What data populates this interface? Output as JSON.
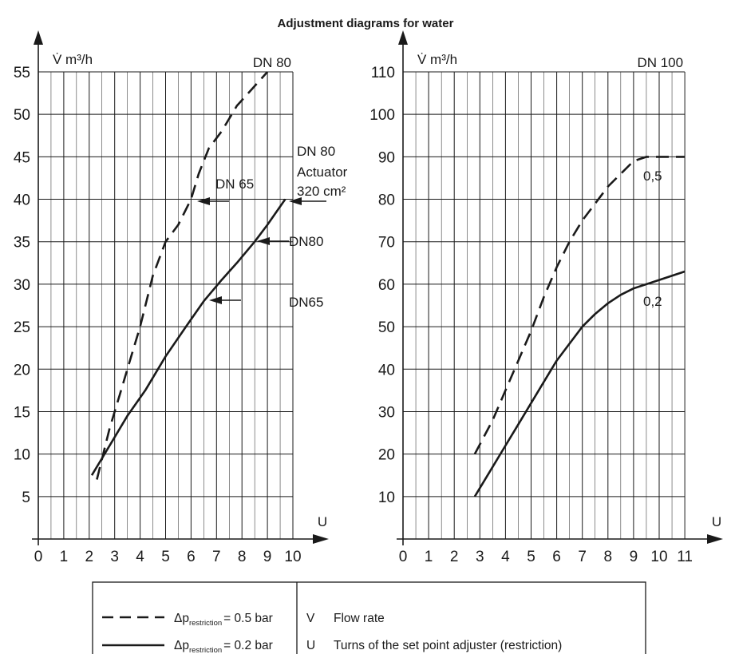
{
  "title": "Adjustment diagrams for water",
  "chart_data": [
    {
      "type": "line",
      "y_axis_label": "V̇ m³/h",
      "x_axis_label": "U",
      "panel_label": "DN 80",
      "xlim": [
        0,
        10
      ],
      "ylim": [
        0,
        55
      ],
      "x_ticks": [
        0,
        1,
        2,
        3,
        4,
        5,
        6,
        7,
        8,
        9,
        10
      ],
      "y_ticks": [
        5,
        10,
        15,
        20,
        25,
        30,
        35,
        40,
        45,
        50,
        55
      ],
      "grid": true,
      "series": [
        {
          "style": "dashed",
          "points": [
            [
              2.3,
              7
            ],
            [
              2.8,
              13
            ],
            [
              3.2,
              17
            ],
            [
              3.6,
              21
            ],
            [
              4.0,
              25
            ],
            [
              4.5,
              31
            ],
            [
              5.0,
              35
            ],
            [
              5.5,
              37
            ],
            [
              6.0,
              40
            ],
            [
              6.3,
              43
            ],
            [
              6.7,
              46
            ],
            [
              7.2,
              48
            ],
            [
              7.8,
              51
            ],
            [
              8.4,
              53
            ],
            [
              9.0,
              55
            ]
          ]
        },
        {
          "style": "solid",
          "points": [
            [
              2.1,
              7.5
            ],
            [
              2.5,
              9.5
            ],
            [
              3.0,
              12
            ],
            [
              3.5,
              14.5
            ],
            [
              4.2,
              17.5
            ],
            [
              5.0,
              21.5
            ],
            [
              5.8,
              25
            ],
            [
              6.5,
              28
            ],
            [
              7.2,
              30.5
            ],
            [
              7.8,
              32.5
            ],
            [
              8.5,
              35
            ],
            [
              9.0,
              37
            ],
            [
              9.7,
              40
            ]
          ]
        }
      ],
      "annotations": [
        {
          "text": "DN 65",
          "points_to": [
            6.0,
            40
          ]
        },
        {
          "text": "DN80",
          "points_to": [
            8.5,
            35
          ]
        },
        {
          "text": "DN65",
          "points_to": [
            6.5,
            28
          ]
        },
        {
          "text_lines": [
            "DN 80",
            "Actuator",
            "320 cm²"
          ],
          "points_to": [
            9.7,
            40
          ]
        }
      ]
    },
    {
      "type": "line",
      "y_axis_label": "V̇ m³/h",
      "x_axis_label": "U",
      "panel_label": "DN 100",
      "xlim": [
        0,
        11
      ],
      "ylim": [
        0,
        110
      ],
      "x_ticks": [
        0,
        1,
        2,
        3,
        4,
        5,
        6,
        7,
        8,
        9,
        10,
        11
      ],
      "y_ticks": [
        10,
        20,
        30,
        40,
        50,
        60,
        70,
        80,
        90,
        100,
        110
      ],
      "grid": true,
      "series": [
        {
          "style": "dashed",
          "points": [
            [
              2.8,
              20
            ],
            [
              3.5,
              28
            ],
            [
              4.0,
              35
            ],
            [
              4.5,
              42
            ],
            [
              5.0,
              49
            ],
            [
              5.5,
              57
            ],
            [
              6.0,
              64
            ],
            [
              6.5,
              70
            ],
            [
              7.0,
              75
            ],
            [
              7.5,
              79
            ],
            [
              8.0,
              83
            ],
            [
              8.5,
              86
            ],
            [
              9.0,
              89
            ],
            [
              9.5,
              90
            ],
            [
              10.0,
              90
            ],
            [
              11.0,
              90
            ]
          ]
        },
        {
          "style": "solid",
          "points": [
            [
              2.8,
              10
            ],
            [
              3.5,
              17
            ],
            [
              4.0,
              22
            ],
            [
              4.5,
              27
            ],
            [
              5.0,
              32
            ],
            [
              5.5,
              37
            ],
            [
              6.0,
              42
            ],
            [
              6.5,
              46
            ],
            [
              7.0,
              50
            ],
            [
              7.5,
              53
            ],
            [
              8.0,
              55.5
            ],
            [
              8.5,
              57.5
            ],
            [
              9.0,
              59
            ],
            [
              10.0,
              61
            ],
            [
              11.0,
              63
            ]
          ]
        }
      ],
      "annotations": [
        {
          "text": "0,5"
        },
        {
          "text": "0,2"
        }
      ]
    }
  ],
  "legend": {
    "rows": [
      {
        "style": "dashed",
        "delta_text": "Δp",
        "subscript": "restriction",
        "value_text": "= 0.5 bar",
        "symbol": "V",
        "description": "Flow rate"
      },
      {
        "style": "solid",
        "delta_text": "Δp",
        "subscript": "restriction",
        "value_text": "= 0.2 bar",
        "symbol": "U",
        "description": "Turns of the set point adjuster (restriction)"
      }
    ]
  }
}
